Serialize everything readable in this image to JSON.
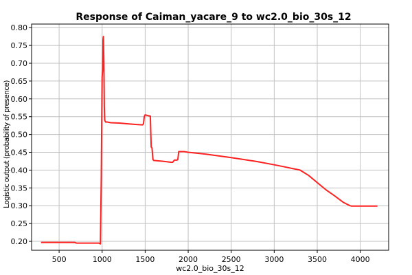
{
  "chart_data": {
    "type": "line",
    "title": "Response of Caiman_yacare_9 to wc2.0_bio_30s_12",
    "xlabel": "wc2.0_bio_30s_12",
    "ylabel": "Logistic output (probability of presence)",
    "xlim": [
      180,
      4330
    ],
    "ylim": [
      0.175,
      0.81
    ],
    "xticks": [
      500,
      1000,
      1500,
      2000,
      2500,
      3000,
      3500,
      4000
    ],
    "yticks": [
      0.2,
      0.25,
      0.3,
      0.35,
      0.4,
      0.45,
      0.5,
      0.55,
      0.6,
      0.65,
      0.7,
      0.75,
      0.8
    ],
    "grid": true,
    "line_color": "#ff2020",
    "series": [
      {
        "x": [
          290,
          680,
          700,
          960,
          980,
          990,
          1000,
          1005,
          1010,
          1015,
          1020,
          1025,
          1030,
          1040,
          1060,
          1100,
          1200,
          1300,
          1400,
          1470,
          1480,
          1490,
          1500,
          1550,
          1560,
          1570,
          1580,
          1590,
          1600,
          1700,
          1800,
          1820,
          1840,
          1860,
          1870,
          1880,
          1890,
          1950,
          2000,
          2200,
          2500,
          2800,
          3000,
          3100,
          3300,
          3400,
          3500,
          3600,
          3700,
          3800,
          3880,
          3900,
          4000,
          4200
        ],
        "y": [
          0.197,
          0.197,
          0.195,
          0.195,
          0.193,
          0.38,
          0.66,
          0.68,
          0.765,
          0.775,
          0.7,
          0.58,
          0.54,
          0.535,
          0.535,
          0.533,
          0.532,
          0.53,
          0.528,
          0.527,
          0.53,
          0.55,
          0.555,
          0.552,
          0.552,
          0.465,
          0.462,
          0.43,
          0.427,
          0.425,
          0.422,
          0.422,
          0.428,
          0.428,
          0.428,
          0.43,
          0.452,
          0.452,
          0.45,
          0.445,
          0.435,
          0.424,
          0.415,
          0.41,
          0.4,
          0.385,
          0.365,
          0.345,
          0.328,
          0.31,
          0.3,
          0.299,
          0.299,
          0.299
        ]
      }
    ]
  }
}
